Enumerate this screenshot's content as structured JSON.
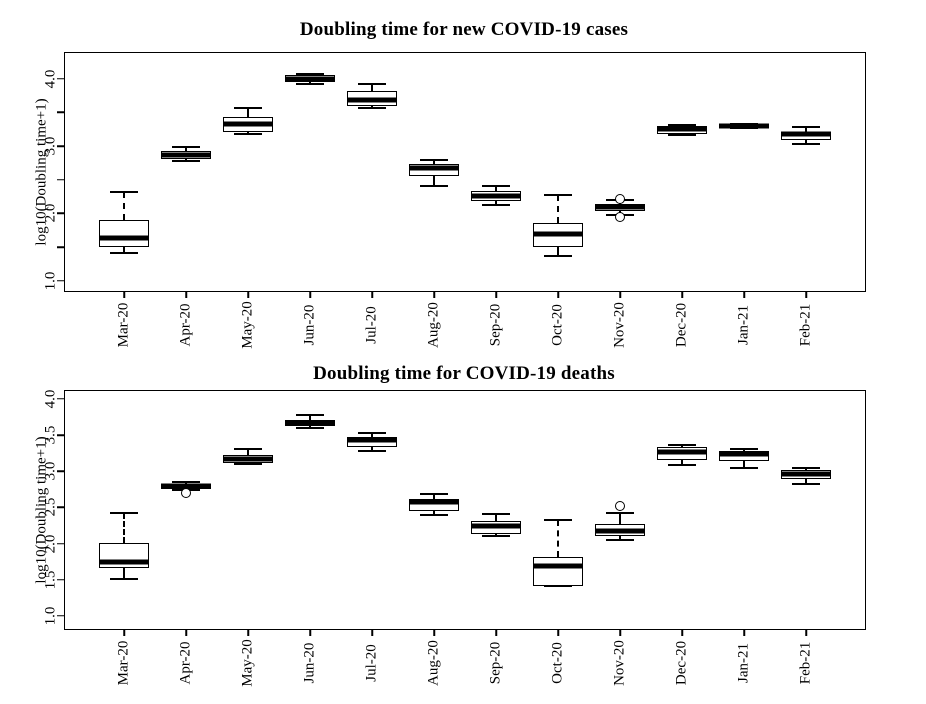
{
  "colors": {
    "foreground": "#000000",
    "background": "#ffffff"
  },
  "chart_data": [
    {
      "type": "boxplot",
      "title": "Doubling time for new COVID-19 cases",
      "ylabel": "log10(Doubling time+1)",
      "xlabel": "",
      "ylim": [
        0.85,
        4.38
      ],
      "grid": false,
      "categories": [
        "Mar-20",
        "Apr-20",
        "May-20",
        "Jun-20",
        "Jul-20",
        "Aug-20",
        "Sep-20",
        "Oct-20",
        "Nov-20",
        "Dec-20",
        "Jan-21",
        "Feb-21"
      ],
      "yticks": [
        {
          "v": 1.0,
          "label": "1.0"
        },
        {
          "v": 1.5,
          "label": ""
        },
        {
          "v": 2.0,
          "label": "2.0"
        },
        {
          "v": 2.5,
          "label": ""
        },
        {
          "v": 3.0,
          "label": "3.0"
        },
        {
          "v": 3.5,
          "label": ""
        },
        {
          "v": 4.0,
          "label": "4.0"
        }
      ],
      "boxes": [
        {
          "category": "Mar-20",
          "whisker_low": 1.41,
          "q1": 1.5,
          "median": 1.64,
          "q3": 1.9,
          "whisker_high": 2.32,
          "outliers": []
        },
        {
          "category": "Apr-20",
          "whisker_low": 2.78,
          "q1": 2.81,
          "median": 2.87,
          "q3": 2.93,
          "whisker_high": 2.99,
          "outliers": []
        },
        {
          "category": "May-20",
          "whisker_low": 3.18,
          "q1": 3.21,
          "median": 3.33,
          "q3": 3.43,
          "whisker_high": 3.56,
          "outliers": []
        },
        {
          "category": "Jun-20",
          "whisker_low": 3.92,
          "q1": 3.95,
          "median": 4.0,
          "q3": 4.06,
          "whisker_high": 4.07,
          "outliers": []
        },
        {
          "category": "Jul-20",
          "whisker_low": 3.56,
          "q1": 3.59,
          "median": 3.68,
          "q3": 3.81,
          "whisker_high": 3.92,
          "outliers": []
        },
        {
          "category": "Aug-20",
          "whisker_low": 2.41,
          "q1": 2.56,
          "median": 2.67,
          "q3": 2.74,
          "whisker_high": 2.79,
          "outliers": []
        },
        {
          "category": "Sep-20",
          "whisker_low": 2.13,
          "q1": 2.19,
          "median": 2.26,
          "q3": 2.34,
          "whisker_high": 2.4,
          "outliers": []
        },
        {
          "category": "Oct-20",
          "whisker_low": 1.37,
          "q1": 1.5,
          "median": 1.69,
          "q3": 1.86,
          "whisker_high": 2.28,
          "outliers": []
        },
        {
          "category": "Nov-20",
          "whisker_low": 1.97,
          "q1": 2.03,
          "median": 2.09,
          "q3": 2.14,
          "whisker_high": 2.2,
          "outliers": [
            2.22,
            1.95
          ]
        },
        {
          "category": "Dec-20",
          "whisker_low": 3.16,
          "q1": 3.18,
          "median": 3.26,
          "q3": 3.3,
          "whisker_high": 3.31,
          "outliers": []
        },
        {
          "category": "Jan-21",
          "whisker_low": 3.27,
          "q1": 3.28,
          "median": 3.3,
          "q3": 3.32,
          "whisker_high": 3.33,
          "outliers": []
        },
        {
          "category": "Feb-21",
          "whisker_low": 3.03,
          "q1": 3.09,
          "median": 3.18,
          "q3": 3.21,
          "whisker_high": 3.28,
          "outliers": []
        }
      ]
    },
    {
      "type": "boxplot",
      "title": "Doubling time for COVID-19 deaths",
      "ylabel": "log10(Doubling time+1)",
      "xlabel": "",
      "ylim": [
        0.82,
        4.11
      ],
      "grid": false,
      "categories": [
        "Mar-20",
        "Apr-20",
        "May-20",
        "Jun-20",
        "Jul-20",
        "Aug-20",
        "Sep-20",
        "Oct-20",
        "Nov-20",
        "Dec-20",
        "Jan-21",
        "Feb-21"
      ],
      "yticks": [
        {
          "v": 1.0,
          "label": "1.0"
        },
        {
          "v": 1.5,
          "label": "1.5"
        },
        {
          "v": 2.0,
          "label": "2.0"
        },
        {
          "v": 2.5,
          "label": "2.5"
        },
        {
          "v": 3.0,
          "label": "3.0"
        },
        {
          "v": 3.5,
          "label": "3.5"
        },
        {
          "v": 4.0,
          "label": "4.0"
        }
      ],
      "boxes": [
        {
          "category": "Mar-20",
          "whisker_low": 1.51,
          "q1": 1.66,
          "median": 1.74,
          "q3": 2.01,
          "whisker_high": 2.42,
          "outliers": []
        },
        {
          "category": "Apr-20",
          "whisker_low": 2.74,
          "q1": 2.76,
          "median": 2.79,
          "q3": 2.83,
          "whisker_high": 2.85,
          "outliers": [
            2.7
          ]
        },
        {
          "category": "May-20",
          "whisker_low": 3.1,
          "q1": 3.12,
          "median": 3.17,
          "q3": 3.22,
          "whisker_high": 3.31,
          "outliers": []
        },
        {
          "category": "Jun-20",
          "whisker_low": 3.6,
          "q1": 3.63,
          "median": 3.67,
          "q3": 3.71,
          "whisker_high": 3.78,
          "outliers": []
        },
        {
          "category": "Jul-20",
          "whisker_low": 3.28,
          "q1": 3.34,
          "median": 3.43,
          "q3": 3.47,
          "whisker_high": 3.53,
          "outliers": []
        },
        {
          "category": "Aug-20",
          "whisker_low": 2.4,
          "q1": 2.45,
          "median": 2.58,
          "q3": 2.62,
          "whisker_high": 2.69,
          "outliers": []
        },
        {
          "category": "Sep-20",
          "whisker_low": 2.11,
          "q1": 2.13,
          "median": 2.24,
          "q3": 2.31,
          "whisker_high": 2.41,
          "outliers": []
        },
        {
          "category": "Oct-20",
          "whisker_low": 1.41,
          "q1": 1.41,
          "median": 1.69,
          "q3": 1.82,
          "whisker_high": 2.33,
          "outliers": []
        },
        {
          "category": "Nov-20",
          "whisker_low": 2.05,
          "q1": 2.1,
          "median": 2.18,
          "q3": 2.27,
          "whisker_high": 2.42,
          "outliers": [
            2.52
          ]
        },
        {
          "category": "Dec-20",
          "whisker_low": 3.09,
          "q1": 3.16,
          "median": 3.27,
          "q3": 3.34,
          "whisker_high": 3.37,
          "outliers": []
        },
        {
          "category": "Jan-21",
          "whisker_low": 3.04,
          "q1": 3.14,
          "median": 3.24,
          "q3": 3.28,
          "whisker_high": 3.31,
          "outliers": []
        },
        {
          "category": "Feb-21",
          "whisker_low": 2.82,
          "q1": 2.89,
          "median": 2.96,
          "q3": 3.02,
          "whisker_high": 3.05,
          "outliers": []
        }
      ]
    }
  ]
}
